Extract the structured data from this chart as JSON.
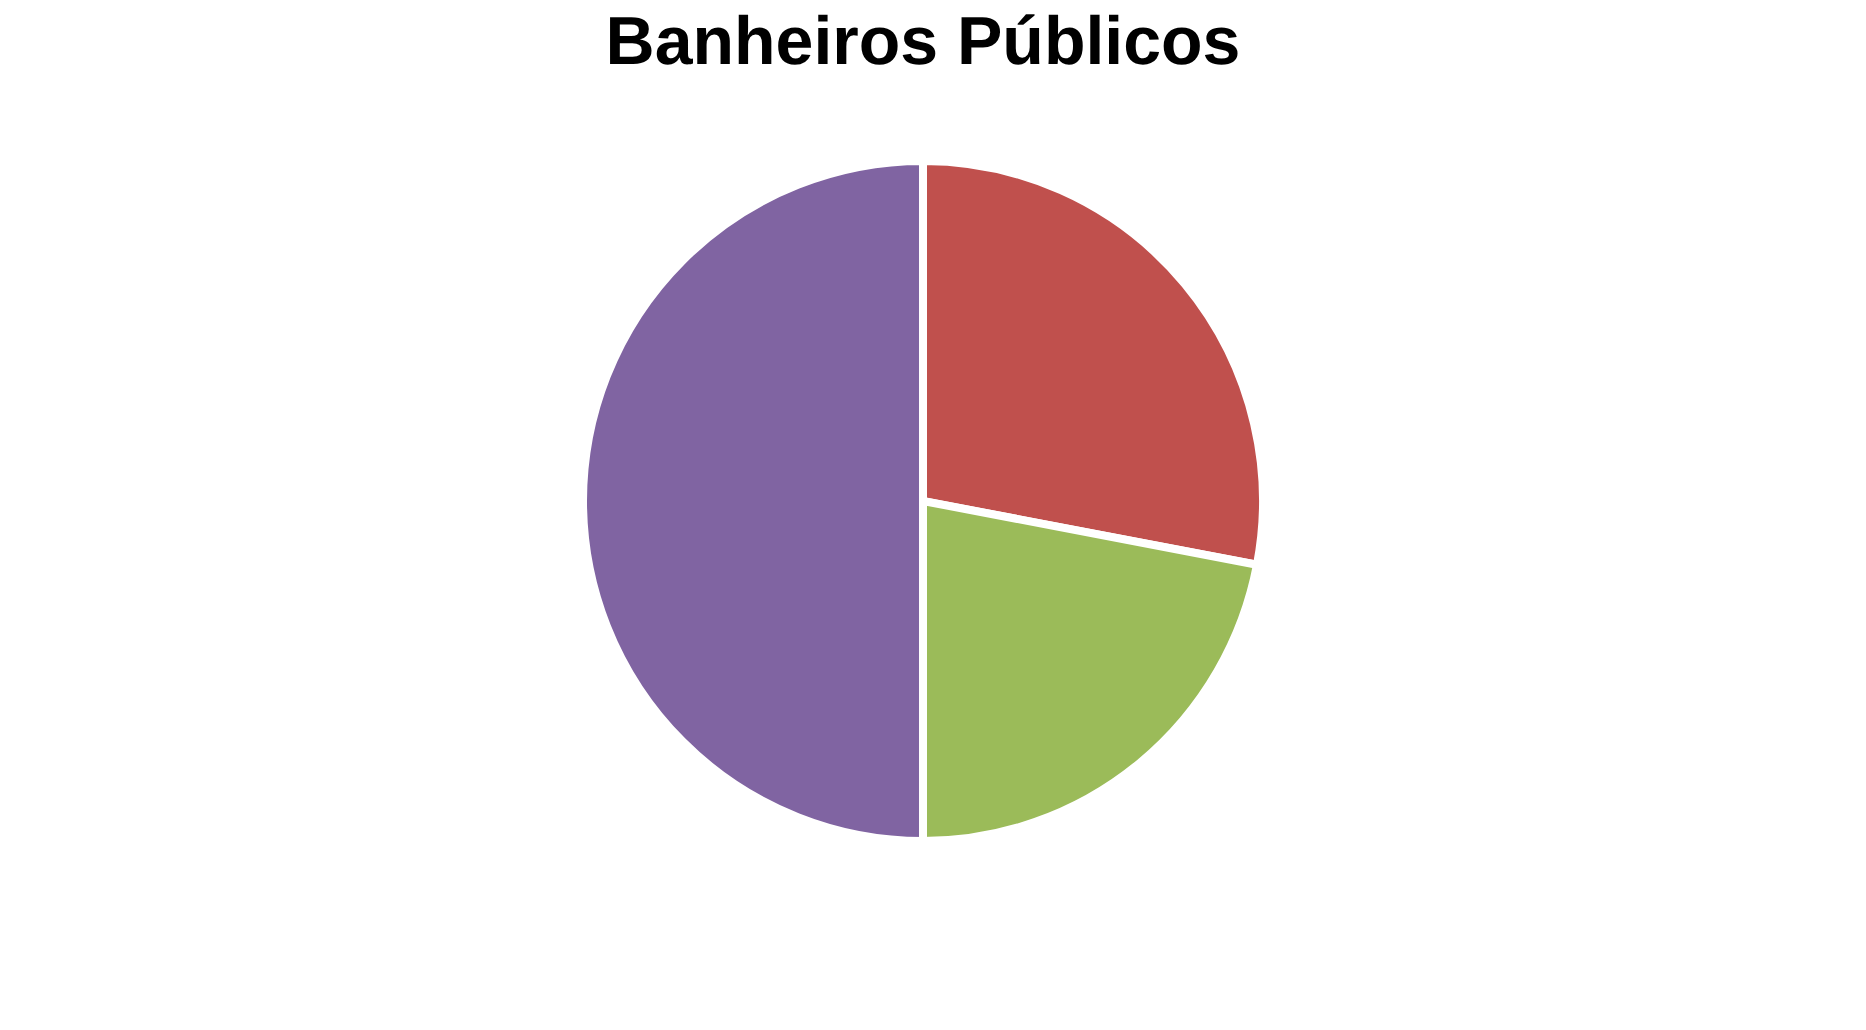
{
  "chart_data": {
    "type": "pie",
    "title": "Banheiros Públicos",
    "categories": [
      null,
      null,
      null
    ],
    "values": [
      28,
      22,
      50
    ],
    "colors": [
      "#c0504d",
      "#9bbb59",
      "#8064a2"
    ],
    "legend": false
  }
}
